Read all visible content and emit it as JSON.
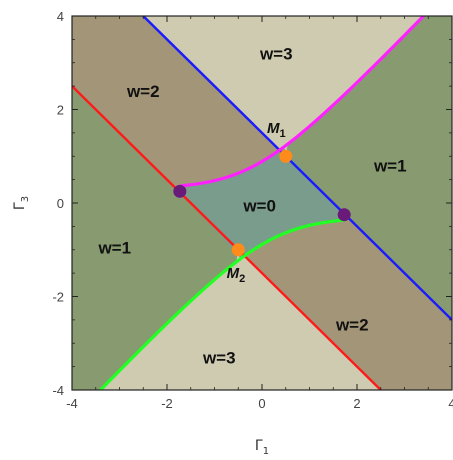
{
  "axes": {
    "xlim": [
      -4,
      4
    ],
    "ylim": [
      -4,
      4
    ],
    "x_ticks": [
      -4,
      -2,
      0,
      2,
      4
    ],
    "y_ticks": [
      -4,
      -2,
      0,
      2,
      4
    ],
    "x_tick_labels": [
      "-4",
      "-2",
      "0",
      "2",
      "4"
    ],
    "y_tick_labels": [
      "-4",
      "-2",
      "0",
      "2",
      "4"
    ],
    "xlabel": {
      "main": "Γ",
      "sub": "1"
    },
    "ylabel": {
      "main": "Γ",
      "sub": "3"
    }
  },
  "colors": {
    "region_w0": "#7a9c8c",
    "region_w1": "#889a70",
    "region_w2": "#a39578",
    "region_w3": "#cfcbb0",
    "red_line": "#ff1a1a",
    "blue_line": "#1a1aff",
    "magenta_curve": "#ff22ff",
    "green_curve": "#22ff22",
    "orange_point": "#ff8c1a",
    "purple_point": "#6a1a78"
  },
  "regions": [
    {
      "label": "w=3",
      "x": 0.3,
      "y": 3.2
    },
    {
      "label": "w=2",
      "x": -2.5,
      "y": 2.4
    },
    {
      "label": "w=1",
      "x": 2.7,
      "y": 0.8
    },
    {
      "label": "w=0",
      "x": -0.05,
      "y": -0.05
    },
    {
      "label": "w=1",
      "x": -3.1,
      "y": -0.95
    },
    {
      "label": "w=3",
      "x": -0.9,
      "y": -3.3
    },
    {
      "label": "w=2",
      "x": 1.9,
      "y": -2.6
    }
  ],
  "lines": {
    "red": {
      "points": [
        [
          -4,
          2.5
        ],
        [
          2.5,
          -4
        ]
      ]
    },
    "blue": {
      "points": [
        [
          -2.5,
          4
        ],
        [
          4,
          -2.5
        ]
      ]
    }
  },
  "curves": {
    "magenta": {
      "x_range": [
        -1.73,
        4
      ]
    },
    "green": {
      "x_range": [
        -4,
        1.73
      ]
    }
  },
  "points": [
    {
      "name": "M",
      "sub": "1",
      "x": 0.5,
      "y": 1.0,
      "kind": "orange",
      "label_dx": -0.2,
      "label_dy": 0.5
    },
    {
      "name": "M",
      "sub": "2",
      "x": -0.5,
      "y": -1.0,
      "kind": "orange",
      "label_dx": -0.05,
      "label_dy": -0.6
    },
    {
      "name": "",
      "sub": "",
      "x": -1.73,
      "y": 0.25,
      "kind": "purple"
    },
    {
      "name": "",
      "sub": "",
      "x": 1.73,
      "y": -0.25,
      "kind": "purple"
    }
  ]
}
